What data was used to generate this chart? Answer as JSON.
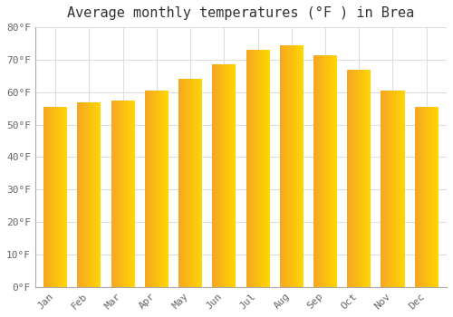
{
  "title": "Average monthly temperatures (°F ) in Brea",
  "months": [
    "Jan",
    "Feb",
    "Mar",
    "Apr",
    "May",
    "Jun",
    "Jul",
    "Aug",
    "Sep",
    "Oct",
    "Nov",
    "Dec"
  ],
  "values": [
    55.5,
    57.0,
    57.5,
    60.5,
    64.0,
    68.5,
    73.0,
    74.5,
    71.5,
    67.0,
    60.5,
    55.5
  ],
  "bar_color_left": "#F5A623",
  "bar_color_right": "#FFD700",
  "ylim": [
    0,
    80
  ],
  "ytick_values": [
    0,
    10,
    20,
    30,
    40,
    50,
    60,
    70,
    80
  ],
  "ytick_labels": [
    "0°F",
    "10°F",
    "20°F",
    "30°F",
    "40°F",
    "50°F",
    "60°F",
    "70°F",
    "80°F"
  ],
  "background_color": "#ffffff",
  "grid_color": "#dddddd",
  "title_fontsize": 11,
  "tick_fontsize": 8,
  "bar_width": 0.7
}
